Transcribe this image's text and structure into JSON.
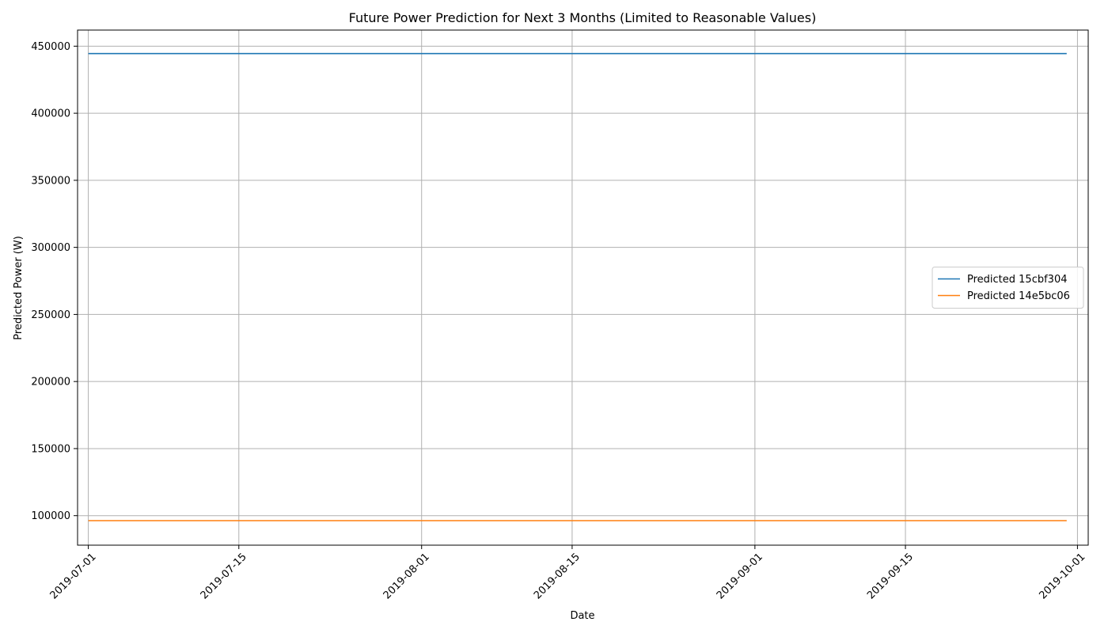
{
  "chart_data": {
    "type": "line",
    "title": "Future Power Prediction for Next 3 Months (Limited to Reasonable Values)",
    "xlabel": "Date",
    "ylabel": "Predicted Power (W)",
    "x_type": "date",
    "xlim": [
      "2019-06-30",
      "2019-10-02"
    ],
    "ylim": [
      78000,
      462000
    ],
    "x_ticks": [
      "2019-07-01",
      "2019-07-15",
      "2019-08-01",
      "2019-08-15",
      "2019-09-01",
      "2019-09-15",
      "2019-10-01"
    ],
    "y_ticks": [
      100000,
      150000,
      200000,
      250000,
      300000,
      350000,
      400000,
      450000
    ],
    "grid": true,
    "legend_position": "center-right",
    "series": [
      {
        "name": "Predicted 15cbf304",
        "color": "#1f77b4",
        "x": [
          "2019-07-01",
          "2019-09-30"
        ],
        "y": [
          444500,
          444500
        ]
      },
      {
        "name": "Predicted 14e5bc06",
        "color": "#ff7f0e",
        "x": [
          "2019-07-01",
          "2019-09-30"
        ],
        "y": [
          96300,
          96300
        ]
      }
    ]
  }
}
